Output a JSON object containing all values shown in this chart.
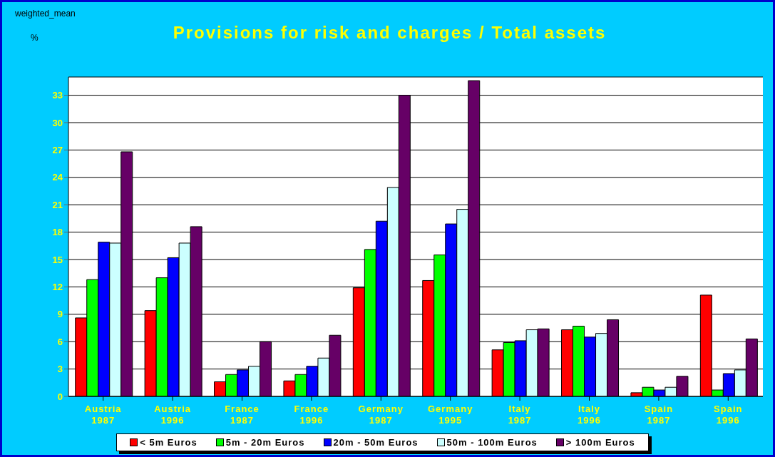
{
  "chart_data": {
    "type": "bar",
    "title": "Provisions for risk and charges / Total assets",
    "ylabel": "%",
    "annotations": [
      "weighted_mean"
    ],
    "categories": [
      "Austria\n1987",
      "Austria\n1996",
      "France\n1987",
      "France\n1996",
      "Germany\n1987",
      "Germany\n1995",
      "Italy\n1987",
      "Italy\n1996",
      "Spain\n1987",
      "Spain\n1996"
    ],
    "series": [
      {
        "name": "< 5m Euros",
        "color": "#ff0000",
        "values": [
          8.6,
          9.4,
          1.6,
          1.7,
          11.9,
          12.7,
          5.1,
          7.3,
          0.4,
          11.1
        ]
      },
      {
        "name": "5m - 20m Euros",
        "color": "#00ff00",
        "values": [
          12.8,
          13.0,
          2.4,
          2.4,
          16.1,
          15.5,
          5.9,
          7.7,
          1.0,
          0.7
        ]
      },
      {
        "name": "20m - 50m Euros",
        "color": "#0000ff",
        "values": [
          16.9,
          15.2,
          2.9,
          3.3,
          19.2,
          18.9,
          6.1,
          6.5,
          0.7,
          2.5
        ]
      },
      {
        "name": "50m - 100m Euros",
        "color": "#ccffff",
        "values": [
          16.8,
          16.8,
          3.3,
          4.2,
          22.9,
          20.5,
          7.3,
          6.9,
          1.0,
          2.9
        ]
      },
      {
        "name": "> 100m Euros",
        "color": "#660066",
        "values": [
          26.8,
          18.6,
          6.0,
          6.7,
          33.0,
          34.6,
          7.4,
          8.4,
          2.2,
          6.3
        ]
      }
    ],
    "ylim": [
      0,
      35
    ],
    "yticks": [
      0,
      3,
      6,
      9,
      12,
      15,
      18,
      21,
      24,
      27,
      30,
      33
    ],
    "grid": "y",
    "legend": "bottom"
  }
}
